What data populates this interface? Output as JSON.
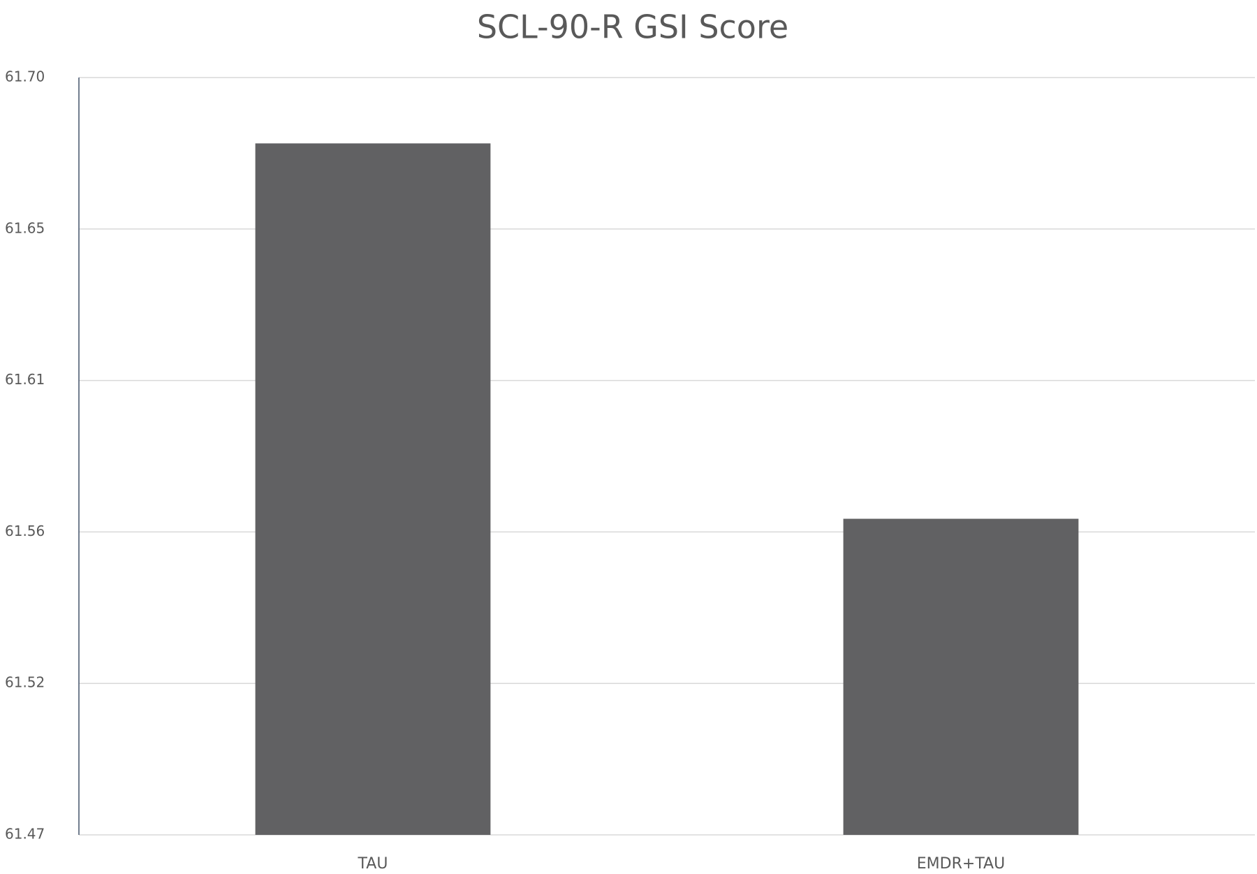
{
  "chart_data": {
    "type": "bar",
    "title": "SCL-90-R GSI Score",
    "categories": [
      "TAU",
      "EMDR+TAU"
    ],
    "values": [
      61.68,
      61.566
    ],
    "color": "#616163",
    "ylim": [
      61.47,
      61.7
    ],
    "yticks": [
      61.47,
      {
        "value": 61.516,
        "label": "61.52"
      },
      {
        "value": 61.562,
        "label": "61.56"
      },
      {
        "value": 61.608,
        "label": "61.61"
      },
      {
        "value": 61.654,
        "label": "61.65"
      },
      {
        "value": 61.7,
        "label": "61.70"
      }
    ],
    "grid": true
  }
}
